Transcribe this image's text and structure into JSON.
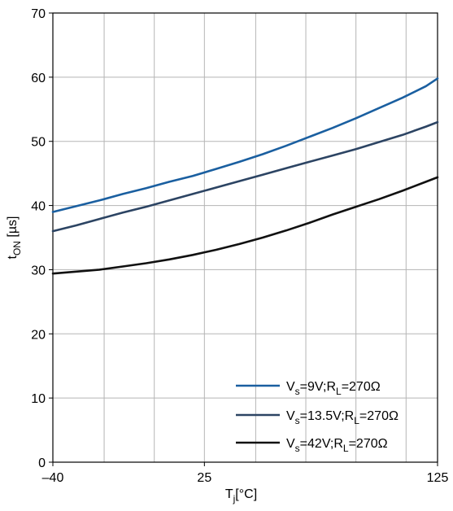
{
  "chart_data": {
    "type": "line",
    "xlabel": {
      "main": "T",
      "sub": "j",
      "rest": "[°C]"
    },
    "ylabel": {
      "main": "t",
      "sub": "ON",
      "rest": " [µs]"
    },
    "xlim": [
      -40,
      125
    ],
    "ylim": [
      0,
      70
    ],
    "x_ticks": [
      {
        "value": -40,
        "label": "–40"
      },
      {
        "value": 25,
        "label": "25"
      },
      {
        "value": 125,
        "label": "125"
      }
    ],
    "x_grid": [
      -40,
      -18,
      3.5,
      25,
      47,
      68.5,
      90,
      111.5,
      125
    ],
    "y_ticks": [
      {
        "value": 0,
        "label": "0"
      },
      {
        "value": 10,
        "label": "10"
      },
      {
        "value": 20,
        "label": "20"
      },
      {
        "value": 30,
        "label": "30"
      },
      {
        "value": 40,
        "label": "40"
      },
      {
        "value": 50,
        "label": "50"
      },
      {
        "value": 60,
        "label": "60"
      },
      {
        "value": 70,
        "label": "70"
      }
    ],
    "grid": true,
    "legend_position": "bottom-right",
    "series": [
      {
        "legend": {
          "a": "V",
          "a_sub": "s",
          "b": "=9V;R",
          "b_sub": "L",
          "c": "=270Ω"
        },
        "color": "#1a5fa0",
        "x": [
          -40,
          -30,
          -20,
          -10,
          0,
          10,
          20,
          30,
          40,
          50,
          60,
          70,
          80,
          90,
          100,
          110,
          120,
          125
        ],
        "values": [
          39.0,
          39.9,
          40.8,
          41.8,
          42.7,
          43.7,
          44.6,
          45.7,
          46.8,
          48.0,
          49.3,
          50.7,
          52.1,
          53.6,
          55.2,
          56.8,
          58.6,
          59.8
        ]
      },
      {
        "legend": {
          "a": "V",
          "a_sub": "s",
          "b": "=13.5V;R",
          "b_sub": "L",
          "c": "=270Ω"
        },
        "color": "#2c4463",
        "x": [
          -40,
          -30,
          -20,
          -10,
          0,
          10,
          20,
          30,
          40,
          50,
          60,
          70,
          80,
          90,
          100,
          110,
          120,
          125
        ],
        "values": [
          36.0,
          36.9,
          37.9,
          38.9,
          39.8,
          40.8,
          41.8,
          42.8,
          43.8,
          44.8,
          45.8,
          46.8,
          47.8,
          48.8,
          49.9,
          51.0,
          52.3,
          53.0
        ]
      },
      {
        "legend": {
          "a": "V",
          "a_sub": "s",
          "b": "=42V;R",
          "b_sub": "L",
          "c": "=270Ω"
        },
        "color": "#111111",
        "x": [
          -40,
          -30,
          -20,
          -10,
          0,
          10,
          20,
          30,
          40,
          50,
          60,
          70,
          80,
          90,
          100,
          110,
          120,
          125
        ],
        "values": [
          29.4,
          29.7,
          30.0,
          30.5,
          31.0,
          31.6,
          32.3,
          33.1,
          34.0,
          35.0,
          36.1,
          37.3,
          38.6,
          39.8,
          41.0,
          42.3,
          43.7,
          44.4
        ]
      }
    ]
  }
}
